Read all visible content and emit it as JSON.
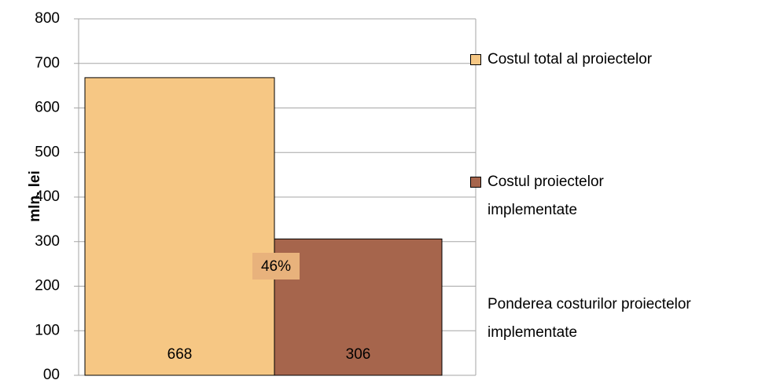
{
  "chart_data": {
    "type": "bar",
    "y_label": "mln. lei",
    "ylim": [
      0,
      800
    ],
    "yticks": [
      {
        "value": 0,
        "label": "00"
      },
      100,
      200,
      300,
      400,
      500,
      600,
      700,
      800
    ],
    "grid": true,
    "legend": "right",
    "series": [
      {
        "name": "Costul total al proiectelor",
        "color": "#f6c784",
        "values": [
          668
        ]
      },
      {
        "name": "Costul proiectelor implementate",
        "color": "#a6654c",
        "values": [
          306
        ]
      },
      {
        "name": "Ponderea costurilor proiectelor implementate",
        "color": "#e8b27c",
        "values": [
          46
        ],
        "value_labels": [
          "46%"
        ]
      }
    ]
  }
}
